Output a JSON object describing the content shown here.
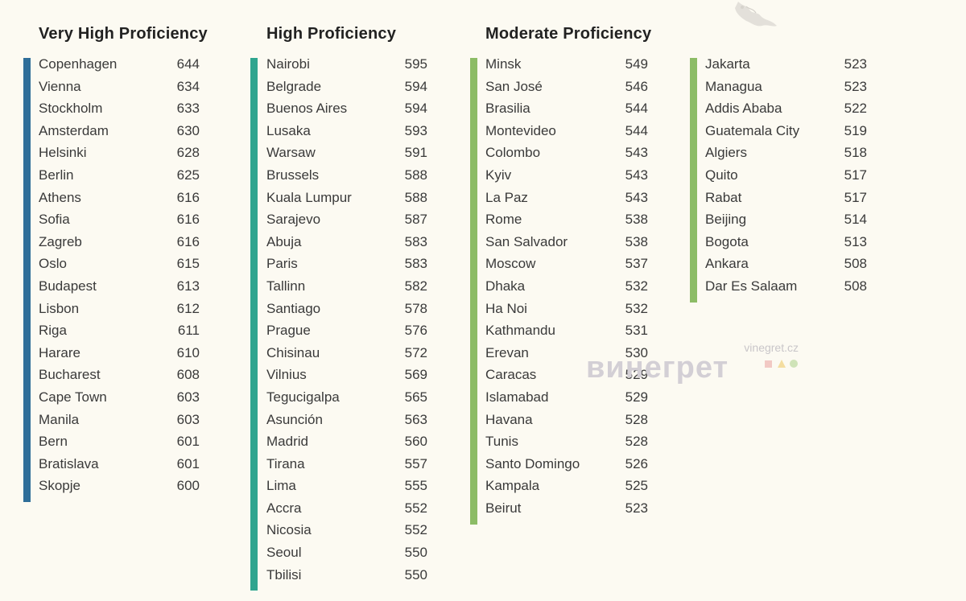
{
  "colors": {
    "background": "#fcfaf2",
    "very_high": "#2f6e99",
    "high": "#2fa58f",
    "moderate": "#8cbc66"
  },
  "groups": [
    {
      "id": "very-high",
      "title": "Very High Proficiency",
      "color": "#2f6e99",
      "rows": [
        {
          "city": "Copenhagen",
          "score": "644"
        },
        {
          "city": "Vienna",
          "score": "634"
        },
        {
          "city": "Stockholm",
          "score": "633"
        },
        {
          "city": "Amsterdam",
          "score": "630"
        },
        {
          "city": "Helsinki",
          "score": "628"
        },
        {
          "city": "Berlin",
          "score": "625"
        },
        {
          "city": "Athens",
          "score": "616"
        },
        {
          "city": "Sofia",
          "score": "616"
        },
        {
          "city": "Zagreb",
          "score": "616"
        },
        {
          "city": "Oslo",
          "score": "615"
        },
        {
          "city": "Budapest",
          "score": "613"
        },
        {
          "city": "Lisbon",
          "score": "612"
        },
        {
          "city": "Riga",
          "score": "611"
        },
        {
          "city": "Harare",
          "score": "610"
        },
        {
          "city": "Bucharest",
          "score": "608"
        },
        {
          "city": "Cape Town",
          "score": "603"
        },
        {
          "city": "Manila",
          "score": "603"
        },
        {
          "city": "Bern",
          "score": "601"
        },
        {
          "city": "Bratislava",
          "score": "601"
        },
        {
          "city": "Skopje",
          "score": "600"
        }
      ]
    },
    {
      "id": "high",
      "title": "High Proficiency",
      "color": "#2fa58f",
      "rows": [
        {
          "city": "Nairobi",
          "score": "595"
        },
        {
          "city": "Belgrade",
          "score": "594"
        },
        {
          "city": "Buenos Aires",
          "score": "594"
        },
        {
          "city": "Lusaka",
          "score": "593"
        },
        {
          "city": "Warsaw",
          "score": "591"
        },
        {
          "city": "Brussels",
          "score": "588"
        },
        {
          "city": "Kuala Lumpur",
          "score": "588"
        },
        {
          "city": "Sarajevo",
          "score": "587"
        },
        {
          "city": "Abuja",
          "score": "583"
        },
        {
          "city": "Paris",
          "score": "583"
        },
        {
          "city": "Tallinn",
          "score": "582"
        },
        {
          "city": "Santiago",
          "score": "578"
        },
        {
          "city": "Prague",
          "score": "576"
        },
        {
          "city": "Chisinau",
          "score": "572"
        },
        {
          "city": "Vilnius",
          "score": "569"
        },
        {
          "city": "Tegucigalpa",
          "score": "565"
        },
        {
          "city": "Asunción",
          "score": "563"
        },
        {
          "city": "Madrid",
          "score": "560"
        },
        {
          "city": "Tirana",
          "score": "557"
        },
        {
          "city": "Lima",
          "score": "555"
        },
        {
          "city": "Accra",
          "score": "552"
        },
        {
          "city": "Nicosia",
          "score": "552"
        },
        {
          "city": "Seoul",
          "score": "550"
        },
        {
          "city": "Tbilisi",
          "score": "550"
        }
      ]
    },
    {
      "id": "moderate-1",
      "title": "Moderate Proficiency",
      "color": "#8cbc66",
      "rows": [
        {
          "city": "Minsk",
          "score": "549"
        },
        {
          "city": "San José",
          "score": "546"
        },
        {
          "city": "Brasilia",
          "score": "544"
        },
        {
          "city": "Montevideo",
          "score": "544"
        },
        {
          "city": "Colombo",
          "score": "543"
        },
        {
          "city": "Kyiv",
          "score": "543"
        },
        {
          "city": "La Paz",
          "score": "543"
        },
        {
          "city": "Rome",
          "score": "538"
        },
        {
          "city": "San Salvador",
          "score": "538"
        },
        {
          "city": "Moscow",
          "score": "537"
        },
        {
          "city": "Dhaka",
          "score": "532"
        },
        {
          "city": "Ha Noi",
          "score": "532"
        },
        {
          "city": "Kathmandu",
          "score": "531"
        },
        {
          "city": "Erevan",
          "score": "530"
        },
        {
          "city": "Caracas",
          "score": "529"
        },
        {
          "city": "Islamabad",
          "score": "529"
        },
        {
          "city": "Havana",
          "score": "528"
        },
        {
          "city": "Tunis",
          "score": "528"
        },
        {
          "city": "Santo Domingo",
          "score": "526"
        },
        {
          "city": "Kampala",
          "score": "525"
        },
        {
          "city": "Beirut",
          "score": "523"
        }
      ]
    },
    {
      "id": "moderate-2",
      "title": "",
      "color": "#8cbc66",
      "rows": [
        {
          "city": "Jakarta",
          "score": "523"
        },
        {
          "city": "Managua",
          "score": "523"
        },
        {
          "city": "Addis Ababa",
          "score": "522"
        },
        {
          "city": "Guatemala City",
          "score": "519"
        },
        {
          "city": "Algiers",
          "score": "518"
        },
        {
          "city": "Quito",
          "score": "517"
        },
        {
          "city": "Rabat",
          "score": "517"
        },
        {
          "city": "Beijing",
          "score": "514"
        },
        {
          "city": "Bogota",
          "score": "513"
        },
        {
          "city": "Ankara",
          "score": "508"
        },
        {
          "city": "Dar Es Salaam",
          "score": "508"
        }
      ]
    }
  ],
  "watermark": {
    "url": "vinegret.cz",
    "logo": "винегрет"
  }
}
